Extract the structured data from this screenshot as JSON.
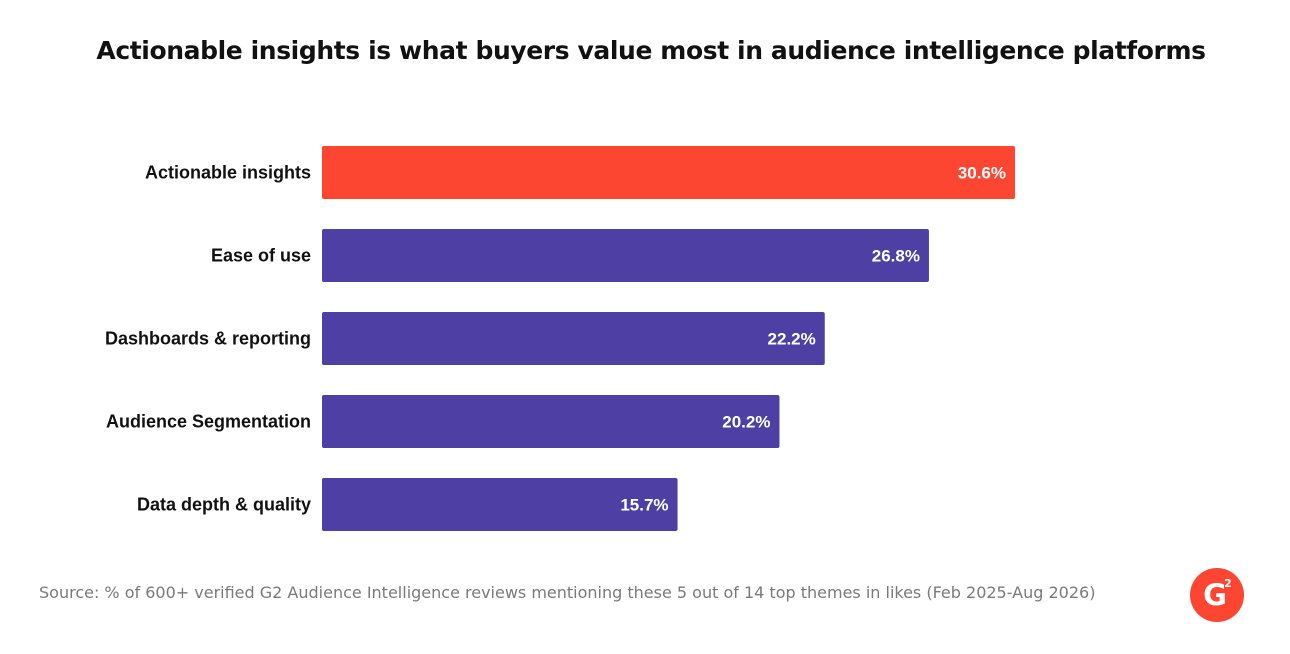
{
  "chart_data": {
    "type": "bar",
    "orientation": "horizontal",
    "title": "Actionable insights is what buyers value most in audience intelligence platforms",
    "categories": [
      "Actionable insights",
      "Ease of use",
      "Dashboards & reporting",
      "Audience Segmentation",
      "Data depth & quality"
    ],
    "values": [
      30.6,
      26.8,
      22.2,
      20.2,
      15.7
    ],
    "value_labels": [
      "30.6%",
      "26.8%",
      "22.2%",
      "20.2%",
      "15.7%"
    ],
    "highlight_index": 0,
    "colors": {
      "highlight": "#FC4632",
      "default": "#4D3FA3"
    },
    "xlim": [
      0,
      30.6
    ],
    "grid": false,
    "legend": "none"
  },
  "footer": {
    "source": "Source: % of 600+ verified G2 Audience Intelligence reviews mentioning these 5 out of 14 top themes in likes (Feb 2025-Aug 2026)"
  },
  "logo": {
    "icon": "g2-logo",
    "letter": "G",
    "superscript": "2",
    "color": "#FC4632"
  }
}
